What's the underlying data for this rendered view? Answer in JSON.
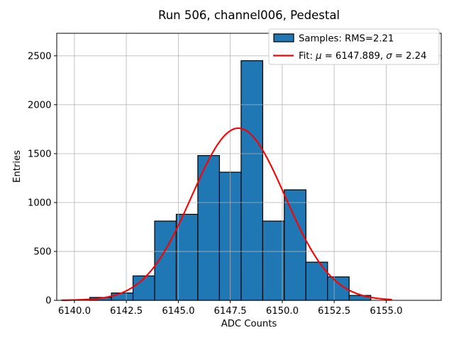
{
  "chart_data": {
    "type": "bar",
    "subtype": "histogram-with-gaussian-fit",
    "title": "Run 506, channel006, Pedestal",
    "xlabel": "ADC Counts",
    "ylabel": "Entries",
    "bin_edges": [
      6140.74,
      6141.78,
      6142.82,
      6143.86,
      6144.9,
      6145.94,
      6146.98,
      6148.02,
      6149.06,
      6150.1,
      6151.14,
      6152.18,
      6153.22,
      6154.26
    ],
    "counts": [
      30,
      75,
      250,
      810,
      880,
      1480,
      1310,
      2450,
      810,
      1130,
      390,
      240,
      50
    ],
    "fit": {
      "model": "gaussian",
      "mu": 6147.889,
      "sigma": 2.24,
      "amplitude": 1760,
      "x_range": [
        6139.4,
        6155.25
      ]
    },
    "stats": {
      "rms": 2.21
    },
    "legend": {
      "position": "upper right",
      "entries": [
        "Samples: RMS=2.21",
        "Fit: μ = 6147.889, σ = 2.24"
      ]
    },
    "xlim": [
      6139.15,
      6157.65
    ],
    "ylim": [
      0,
      2730
    ],
    "xticks": [
      6140.0,
      6142.5,
      6145.0,
      6147.5,
      6150.0,
      6152.5,
      6155.0
    ],
    "yticks": [
      0,
      500,
      1000,
      1500,
      2000,
      2500
    ],
    "grid": true,
    "style": {
      "bar_fill": "#1f77b4",
      "bar_edge": "#000000",
      "fit_color": "#ff0000",
      "grid_color": "#b0b0b0",
      "spine_color": "#000000",
      "legend_frame": "#cccccc",
      "background": "#ffffff"
    }
  }
}
